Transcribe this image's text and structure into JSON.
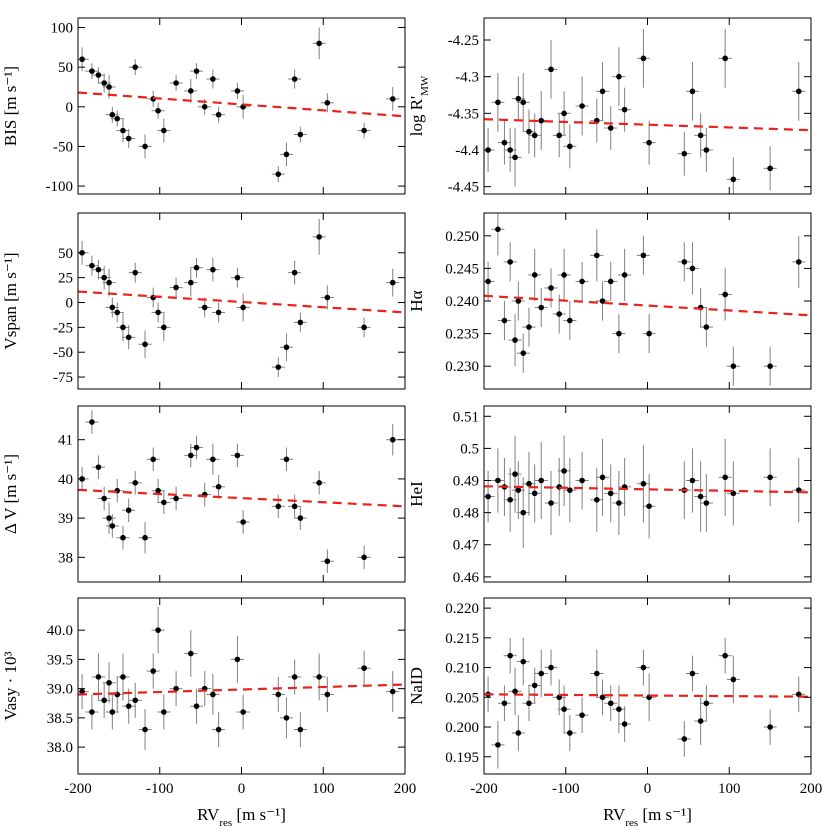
{
  "chart_data": [
    {
      "type": "scatter",
      "y_label": [
        "BIS [m s⁻¹]"
      ],
      "xlim": [
        -200,
        200
      ],
      "xticks": [
        -200,
        -100,
        0,
        100,
        200
      ],
      "ylim": [
        -110,
        112
      ],
      "yticks": [
        -100,
        -50,
        0,
        50,
        100
      ],
      "color": "#000000",
      "err_color": "#808080",
      "xerr": 8,
      "x": [
        -195,
        -183,
        -175,
        -168,
        -162,
        -158,
        -152,
        -145,
        -138,
        -130,
        -118,
        -108,
        -102,
        -95,
        -80,
        -62,
        -55,
        -45,
        -35,
        -28,
        -5,
        2,
        45,
        55,
        65,
        72,
        95,
        105,
        150,
        185
      ],
      "y": [
        60,
        45,
        40,
        30,
        25,
        -10,
        -15,
        -30,
        -40,
        50,
        -50,
        10,
        -5,
        -30,
        30,
        20,
        45,
        0,
        35,
        -10,
        20,
        0,
        -85,
        -60,
        35,
        -35,
        80,
        5,
        -30,
        10
      ],
      "yerr": [
        15,
        10,
        10,
        12,
        15,
        10,
        10,
        15,
        12,
        10,
        15,
        10,
        10,
        15,
        10,
        15,
        10,
        10,
        12,
        10,
        10,
        15,
        10,
        15,
        12,
        10,
        20,
        12,
        10,
        15
      ],
      "fit": {
        "color": "#e8231e",
        "x": [
          -200,
          200
        ],
        "y": [
          18,
          -12
        ]
      }
    },
    {
      "type": "scatter",
      "y_label": [
        "log R'",
        "MW"
      ],
      "xlim": [
        -200,
        200
      ],
      "xticks": [
        -200,
        -100,
        0,
        100,
        200
      ],
      "ylim": [
        -4.46,
        -4.22
      ],
      "yticks": [
        -4.45,
        -4.4,
        -4.35,
        -4.3,
        -4.25
      ],
      "color": "#000000",
      "err_color": "#808080",
      "xerr": 8,
      "x": [
        -195,
        -183,
        -175,
        -168,
        -162,
        -158,
        -152,
        -145,
        -138,
        -130,
        -118,
        -108,
        -102,
        -95,
        -80,
        -62,
        -55,
        -45,
        -35,
        -28,
        -5,
        2,
        45,
        55,
        65,
        72,
        95,
        105,
        150,
        185
      ],
      "y": [
        -4.4,
        -4.335,
        -4.39,
        -4.4,
        -4.41,
        -4.33,
        -4.335,
        -4.375,
        -4.38,
        -4.36,
        -4.29,
        -4.38,
        -4.35,
        -4.395,
        -4.34,
        -4.36,
        -4.32,
        -4.37,
        -4.3,
        -4.345,
        -4.275,
        -4.39,
        -4.405,
        -4.32,
        -4.38,
        -4.4,
        -4.275,
        -4.44,
        -4.425,
        -4.32
      ],
      "yerr": [
        0.03,
        0.04,
        0.03,
        0.03,
        0.04,
        0.03,
        0.04,
        0.03,
        0.03,
        0.04,
        0.04,
        0.03,
        0.03,
        0.03,
        0.04,
        0.03,
        0.04,
        0.03,
        0.04,
        0.03,
        0.04,
        0.03,
        0.03,
        0.04,
        0.03,
        0.03,
        0.04,
        0.03,
        0.03,
        0.04
      ],
      "fit": {
        "color": "#e8231e",
        "x": [
          -200,
          200
        ],
        "y": [
          -4.358,
          -4.373
        ]
      }
    },
    {
      "type": "scatter",
      "y_label": [
        "Vspan [m s⁻¹]"
      ],
      "xlim": [
        -200,
        200
      ],
      "xticks": [
        -200,
        -100,
        0,
        100,
        200
      ],
      "ylim": [
        -87,
        90
      ],
      "yticks": [
        -75,
        -50,
        -25,
        0,
        25,
        50
      ],
      "color": "#000000",
      "err_color": "#808080",
      "xerr": 8,
      "x": [
        -195,
        -183,
        -175,
        -168,
        -162,
        -158,
        -152,
        -145,
        -138,
        -130,
        -118,
        -108,
        -102,
        -95,
        -80,
        -62,
        -55,
        -45,
        -35,
        -28,
        -5,
        2,
        45,
        55,
        65,
        72,
        95,
        105,
        150,
        185
      ],
      "y": [
        50,
        37,
        33,
        25,
        20,
        -5,
        -10,
        -25,
        -35,
        30,
        -42,
        5,
        -10,
        -25,
        15,
        20,
        35,
        -5,
        33,
        -10,
        25,
        -5,
        -65,
        -45,
        30,
        -20,
        66,
        5,
        -25,
        20
      ],
      "yerr": [
        12,
        10,
        10,
        12,
        14,
        10,
        10,
        14,
        12,
        10,
        14,
        10,
        10,
        14,
        10,
        14,
        10,
        10,
        12,
        10,
        10,
        14,
        10,
        14,
        12,
        10,
        18,
        12,
        10,
        14
      ],
      "fit": {
        "color": "#e8231e",
        "x": [
          -200,
          200
        ],
        "y": [
          11,
          -10
        ]
      }
    },
    {
      "type": "scatter",
      "y_label": [
        "Hα"
      ],
      "xlim": [
        -200,
        200
      ],
      "xticks": [
        -200,
        -100,
        0,
        100,
        200
      ],
      "ylim": [
        0.2265,
        0.2535
      ],
      "yticks": [
        {
          "value": 0.23,
          "label": "0.230"
        },
        0.235,
        {
          "value": 0.24,
          "label": "0.240"
        },
        0.245,
        {
          "value": 0.25,
          "label": "0.250"
        }
      ],
      "color": "#000000",
      "err_color": "#808080",
      "xerr": 8,
      "x": [
        -195,
        -183,
        -175,
        -168,
        -162,
        -158,
        -152,
        -145,
        -138,
        -130,
        -118,
        -108,
        -102,
        -95,
        -80,
        -62,
        -55,
        -45,
        -35,
        -28,
        -5,
        2,
        45,
        55,
        65,
        72,
        95,
        105,
        150,
        185
      ],
      "y": [
        0.243,
        0.251,
        0.237,
        0.246,
        0.234,
        0.24,
        0.232,
        0.236,
        0.244,
        0.239,
        0.242,
        0.238,
        0.244,
        0.237,
        0.243,
        0.247,
        0.24,
        0.243,
        0.235,
        0.244,
        0.247,
        0.235,
        0.246,
        0.245,
        0.239,
        0.236,
        0.241,
        0.23,
        0.23,
        0.246
      ],
      "yerr": [
        0.003,
        0.004,
        0.003,
        0.003,
        0.004,
        0.003,
        0.003,
        0.003,
        0.004,
        0.003,
        0.003,
        0.003,
        0.004,
        0.003,
        0.003,
        0.004,
        0.003,
        0.003,
        0.003,
        0.004,
        0.003,
        0.003,
        0.003,
        0.004,
        0.003,
        0.003,
        0.004,
        0.003,
        0.003,
        0.004
      ],
      "fit": {
        "color": "#e8231e",
        "x": [
          -200,
          200
        ],
        "y": [
          0.2408,
          0.2378
        ]
      }
    },
    {
      "type": "scatter",
      "y_label": [
        "Δ V [m s⁻¹]"
      ],
      "xlim": [
        -200,
        200
      ],
      "xticks": [
        -200,
        -100,
        0,
        100,
        200
      ],
      "ylim": [
        37.37,
        41.86
      ],
      "yticks": [
        38,
        39,
        40,
        41
      ],
      "color": "#000000",
      "err_color": "#808080",
      "xerr": 8,
      "x": [
        -195,
        -183,
        -175,
        -168,
        -162,
        -158,
        -152,
        -145,
        -138,
        -130,
        -118,
        -108,
        -102,
        -95,
        -80,
        -62,
        -55,
        -45,
        -35,
        -28,
        -5,
        2,
        45,
        55,
        65,
        72,
        95,
        105,
        150,
        185
      ],
      "y": [
        40.0,
        41.45,
        40.3,
        39.5,
        39.0,
        38.8,
        39.7,
        38.5,
        39.2,
        39.9,
        38.5,
        40.5,
        39.7,
        39.4,
        39.5,
        40.6,
        40.8,
        39.6,
        40.5,
        39.8,
        40.6,
        38.9,
        39.3,
        40.5,
        39.3,
        39.0,
        39.9,
        37.9,
        38.0,
        41.0
      ],
      "yerr": [
        0.3,
        0.3,
        0.3,
        0.3,
        0.4,
        0.3,
        0.3,
        0.3,
        0.3,
        0.3,
        0.4,
        0.3,
        0.3,
        0.3,
        0.3,
        0.3,
        0.3,
        0.3,
        0.4,
        0.3,
        0.3,
        0.3,
        0.3,
        0.3,
        0.3,
        0.3,
        0.3,
        0.3,
        0.3,
        0.4
      ],
      "fit": {
        "color": "#e8231e",
        "x": [
          -200,
          200
        ],
        "y": [
          39.72,
          39.3
        ]
      }
    },
    {
      "type": "scatter",
      "y_label": [
        "HeI"
      ],
      "xlim": [
        -200,
        200
      ],
      "xticks": [
        -200,
        -100,
        0,
        100,
        200
      ],
      "ylim": [
        0.4584,
        0.5132
      ],
      "yticks": [
        0.46,
        0.47,
        0.48,
        0.49,
        0.5,
        0.51
      ],
      "color": "#000000",
      "err_color": "#808080",
      "xerr": 8,
      "x": [
        -195,
        -183,
        -175,
        -168,
        -162,
        -158,
        -152,
        -145,
        -138,
        -130,
        -118,
        -108,
        -102,
        -95,
        -80,
        -62,
        -55,
        -45,
        -35,
        -28,
        -5,
        2,
        45,
        55,
        65,
        72,
        95,
        105,
        150,
        185
      ],
      "y": [
        0.485,
        0.49,
        0.488,
        0.484,
        0.492,
        0.487,
        0.48,
        0.489,
        0.486,
        0.49,
        0.483,
        0.488,
        0.493,
        0.487,
        0.49,
        0.484,
        0.491,
        0.486,
        0.483,
        0.488,
        0.489,
        0.482,
        0.487,
        0.49,
        0.485,
        0.483,
        0.491,
        0.486,
        0.491,
        0.487
      ],
      "yerr": [
        0.008,
        0.01,
        0.009,
        0.01,
        0.012,
        0.009,
        0.011,
        0.01,
        0.009,
        0.012,
        0.01,
        0.009,
        0.011,
        0.01,
        0.009,
        0.01,
        0.012,
        0.009,
        0.01,
        0.009,
        0.012,
        0.01,
        0.009,
        0.01,
        0.011,
        0.009,
        0.012,
        0.01,
        0.009,
        0.01
      ],
      "fit": {
        "color": "#e8231e",
        "x": [
          -200,
          200
        ],
        "y": [
          0.4882,
          0.4863
        ]
      }
    },
    {
      "type": "scatter",
      "y_label": [
        "Vasy · 10³"
      ],
      "x_label": [
        "RV",
        "res",
        " [m s⁻¹]"
      ],
      "xlim": [
        -200,
        200
      ],
      "xticks": [
        -200,
        -100,
        0,
        100,
        200
      ],
      "ylim": [
        37.54,
        40.55
      ],
      "yticks": [
        {
          "value": 38,
          "label": "38.0"
        },
        38.5,
        {
          "value": 39,
          "label": "39.0"
        },
        39.5,
        {
          "value": 40,
          "label": "40.0"
        }
      ],
      "color": "#000000",
      "err_color": "#808080",
      "xerr": 8,
      "x": [
        -195,
        -183,
        -175,
        -168,
        -162,
        -158,
        -152,
        -145,
        -138,
        -130,
        -118,
        -108,
        -102,
        -95,
        -80,
        -62,
        -55,
        -45,
        -35,
        -28,
        -5,
        2,
        45,
        55,
        65,
        72,
        95,
        105,
        150,
        185
      ],
      "y": [
        38.95,
        38.6,
        39.2,
        38.8,
        39.1,
        38.6,
        38.9,
        39.2,
        38.7,
        38.8,
        38.3,
        39.3,
        40.0,
        38.6,
        39.0,
        39.6,
        38.7,
        39.0,
        38.9,
        38.3,
        39.5,
        38.6,
        38.9,
        38.5,
        39.2,
        38.3,
        39.2,
        38.9,
        39.35,
        38.95
      ],
      "yerr": [
        0.3,
        0.3,
        0.4,
        0.3,
        0.35,
        0.3,
        0.3,
        0.4,
        0.3,
        0.3,
        0.35,
        0.3,
        0.4,
        0.3,
        0.3,
        0.4,
        0.3,
        0.3,
        0.35,
        0.3,
        0.4,
        0.3,
        0.3,
        0.35,
        0.3,
        0.3,
        0.4,
        0.3,
        0.3,
        0.35
      ],
      "fit": {
        "color": "#e8231e",
        "x": [
          -200,
          200
        ],
        "y": [
          38.9,
          39.07
        ]
      }
    },
    {
      "type": "scatter",
      "y_label": [
        "NaID"
      ],
      "x_label": [
        "RV",
        "res",
        " [m s⁻¹]"
      ],
      "xlim": [
        -200,
        200
      ],
      "xticks": [
        -200,
        -100,
        0,
        100,
        200
      ],
      "ylim": [
        0.1921,
        0.2217
      ],
      "yticks": [
        0.195,
        {
          "value": 0.2,
          "label": "0.200"
        },
        0.205,
        {
          "value": 0.21,
          "label": "0.210"
        },
        0.215,
        {
          "value": 0.22,
          "label": "0.220"
        }
      ],
      "color": "#000000",
      "err_color": "#808080",
      "xerr": 8,
      "x": [
        -195,
        -183,
        -175,
        -168,
        -162,
        -158,
        -152,
        -145,
        -138,
        -130,
        -118,
        -108,
        -102,
        -95,
        -80,
        -62,
        -55,
        -45,
        -35,
        -28,
        -5,
        2,
        45,
        55,
        65,
        72,
        95,
        105,
        150,
        185
      ],
      "y": [
        0.2055,
        0.197,
        0.204,
        0.212,
        0.206,
        0.199,
        0.211,
        0.204,
        0.207,
        0.209,
        0.21,
        0.205,
        0.203,
        0.199,
        0.202,
        0.209,
        0.205,
        0.204,
        0.203,
        0.2005,
        0.21,
        0.205,
        0.198,
        0.209,
        0.201,
        0.204,
        0.212,
        0.208,
        0.2,
        0.2055
      ],
      "yerr": [
        0.003,
        0.004,
        0.003,
        0.003,
        0.004,
        0.003,
        0.004,
        0.003,
        0.003,
        0.004,
        0.003,
        0.003,
        0.004,
        0.003,
        0.003,
        0.004,
        0.003,
        0.003,
        0.004,
        0.003,
        0.003,
        0.004,
        0.003,
        0.003,
        0.004,
        0.003,
        0.003,
        0.004,
        0.003,
        0.003
      ],
      "fit": {
        "color": "#e8231e",
        "x": [
          -200,
          200
        ],
        "y": [
          0.2055,
          0.2051
        ]
      }
    }
  ]
}
